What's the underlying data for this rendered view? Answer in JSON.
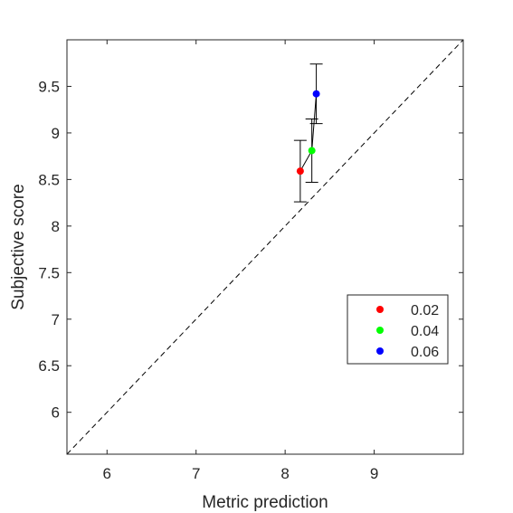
{
  "chart_data": {
    "type": "scatter",
    "title": "",
    "xlabel": "Metric prediction",
    "ylabel": "Subjective score",
    "xlim": [
      5.55,
      10.0
    ],
    "ylim": [
      5.55,
      10.0
    ],
    "xticks": [
      6,
      7,
      8,
      9
    ],
    "yticks": [
      6,
      6.5,
      7,
      7.5,
      8,
      8.5,
      9,
      9.5
    ],
    "xtick_labels": [
      "6",
      "7",
      "8",
      "9"
    ],
    "ytick_labels": [
      "6",
      "6.5",
      "7",
      "7.5",
      "8",
      "8.5",
      "9",
      "9.5"
    ],
    "grid": false,
    "legend_position": "lower-right",
    "reference_line": {
      "style": "dashed",
      "from": [
        5.55,
        5.55
      ],
      "to": [
        10.0,
        10.0
      ]
    },
    "connect_points": true,
    "series": [
      {
        "name": "0.02",
        "color": "#ff0000",
        "x": 8.17,
        "y": 8.59,
        "err_low": 8.26,
        "err_high": 8.92
      },
      {
        "name": "0.04",
        "color": "#00ff00",
        "x": 8.3,
        "y": 8.81,
        "err_low": 8.47,
        "err_high": 9.15
      },
      {
        "name": "0.06",
        "color": "#0000ff",
        "x": 8.35,
        "y": 9.42,
        "err_low": 9.1,
        "err_high": 9.74
      }
    ]
  }
}
